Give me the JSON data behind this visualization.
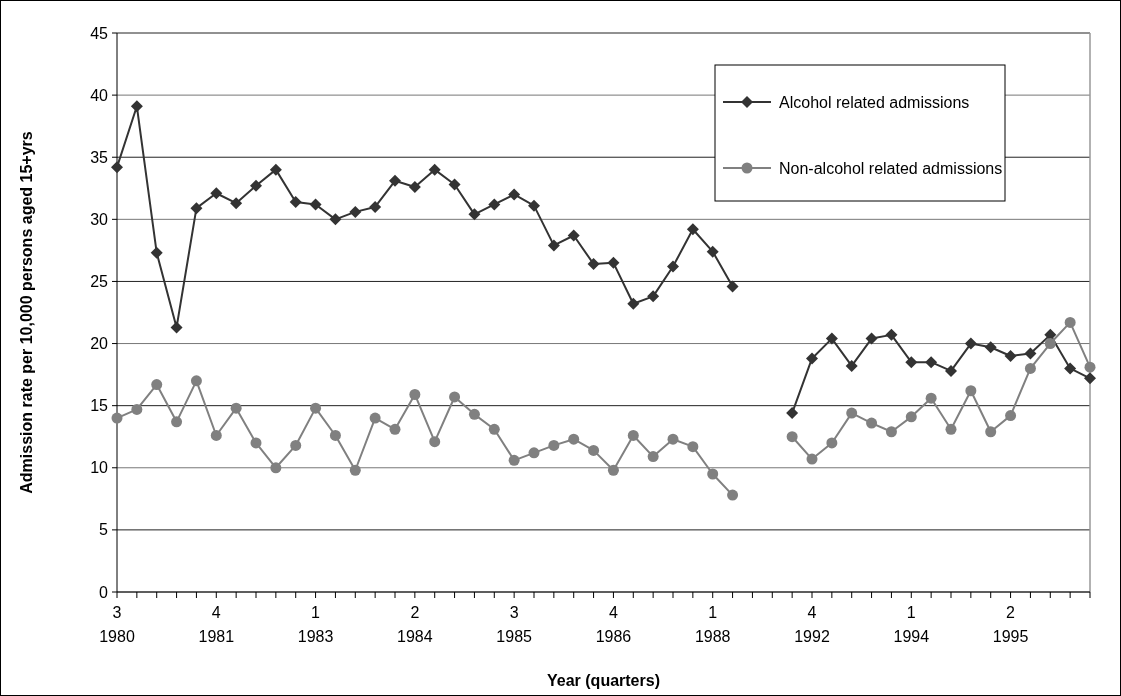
{
  "chart_data": {
    "type": "line",
    "xlabel": "Year (quarters)",
    "ylabel": "Admission rate per 10,000 persons aged 15+yrs",
    "categories": [
      "3\n1980",
      null,
      null,
      null,
      null,
      "4\n1981",
      null,
      null,
      null,
      null,
      "1\n1983",
      null,
      null,
      null,
      null,
      "2\n1984",
      null,
      null,
      null,
      null,
      "3\n1985",
      null,
      null,
      null,
      null,
      "4\n1986",
      null,
      null,
      null,
      null,
      "1\n1988",
      null,
      null,
      null,
      null,
      "4\n1992",
      null,
      null,
      null,
      null,
      "1\n1994",
      null,
      null,
      null,
      null,
      "2\n1995",
      null,
      null,
      null,
      null
    ],
    "series": [
      {
        "name": "Alcohol related admissions",
        "color": "#333333",
        "marker": "diamond",
        "values": [
          34.2,
          39.1,
          27.3,
          21.3,
          30.9,
          32.1,
          31.3,
          32.7,
          34.0,
          31.4,
          31.2,
          30.0,
          30.6,
          31.0,
          33.1,
          32.6,
          34.0,
          32.8,
          30.4,
          31.2,
          32.0,
          31.1,
          27.9,
          28.7,
          26.4,
          26.5,
          23.2,
          23.8,
          26.2,
          29.2,
          27.4,
          24.6,
          null,
          null,
          14.4,
          18.8,
          20.4,
          18.2,
          20.4,
          20.7,
          18.5,
          18.5,
          17.8,
          20.0,
          19.7,
          19.0,
          19.2,
          20.7,
          18.0,
          17.2
        ]
      },
      {
        "name": "Non-alcohol related admissions",
        "color": "#808080",
        "marker": "circle",
        "values": [
          14.0,
          14.7,
          16.7,
          13.7,
          17.0,
          12.6,
          14.8,
          12.0,
          10.0,
          11.8,
          14.8,
          12.6,
          9.8,
          14.0,
          13.1,
          15.9,
          12.1,
          15.7,
          14.3,
          13.1,
          10.6,
          11.2,
          11.8,
          12.3,
          11.4,
          9.8,
          12.6,
          10.9,
          12.3,
          11.7,
          9.5,
          7.8,
          null,
          null,
          12.5,
          10.7,
          12.0,
          14.4,
          13.6,
          12.9,
          14.1,
          15.6,
          13.1,
          16.2,
          12.9,
          14.2,
          18.0,
          20.0,
          21.7,
          18.1
        ]
      }
    ],
    "ylim": [
      0,
      45
    ],
    "yticks": [
      0,
      5,
      10,
      15,
      20,
      25,
      30,
      35,
      40,
      45
    ],
    "grid": "y",
    "legend": "top right",
    "line_style": "solid"
  }
}
